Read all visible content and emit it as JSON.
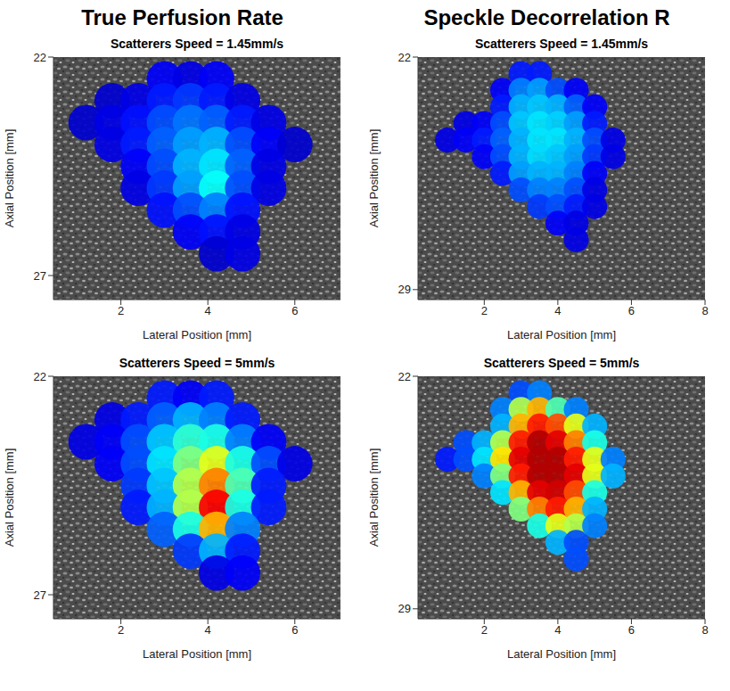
{
  "column_titles": [
    "True Perfusion Rate",
    "Speckle Decorrelation R"
  ],
  "chart_data": [
    {
      "type": "heatmap",
      "title": "Scatterers Speed = 1.45mm/s",
      "x_label": "Lateral Position [mm]",
      "y_label": "Axial Position [mm]",
      "xlim": [
        0.45,
        7.05
      ],
      "ylim": [
        27.55,
        22
      ],
      "xticks": [
        2,
        4,
        6
      ],
      "yticks": [
        22,
        27
      ],
      "zlim": [
        0,
        1
      ],
      "cells": [
        [
          3.0,
          22.5,
          0.12
        ],
        [
          3.6,
          22.5,
          0.1
        ],
        [
          4.2,
          22.5,
          0.12
        ],
        [
          1.8,
          23.0,
          0.08
        ],
        [
          2.4,
          23.0,
          0.1
        ],
        [
          3.0,
          23.0,
          0.15
        ],
        [
          3.6,
          23.0,
          0.18
        ],
        [
          4.2,
          23.0,
          0.15
        ],
        [
          4.8,
          23.0,
          0.1
        ],
        [
          1.2,
          23.5,
          0.08
        ],
        [
          1.8,
          23.5,
          0.1
        ],
        [
          2.4,
          23.5,
          0.14
        ],
        [
          3.0,
          23.5,
          0.2
        ],
        [
          3.6,
          23.5,
          0.24
        ],
        [
          4.2,
          23.5,
          0.22
        ],
        [
          4.8,
          23.5,
          0.15
        ],
        [
          5.4,
          23.5,
          0.1
        ],
        [
          1.8,
          24.0,
          0.1
        ],
        [
          2.4,
          24.0,
          0.15
        ],
        [
          3.0,
          24.0,
          0.22
        ],
        [
          3.6,
          24.0,
          0.28
        ],
        [
          4.2,
          24.0,
          0.3
        ],
        [
          4.8,
          24.0,
          0.2
        ],
        [
          5.4,
          24.0,
          0.12
        ],
        [
          6.0,
          24.0,
          0.08
        ],
        [
          2.4,
          24.5,
          0.12
        ],
        [
          3.0,
          24.5,
          0.2
        ],
        [
          3.6,
          24.5,
          0.3
        ],
        [
          4.2,
          24.5,
          0.35
        ],
        [
          4.8,
          24.5,
          0.22
        ],
        [
          5.4,
          24.5,
          0.1
        ],
        [
          2.4,
          25.0,
          0.1
        ],
        [
          3.0,
          25.0,
          0.18
        ],
        [
          3.6,
          25.0,
          0.28
        ],
        [
          4.2,
          25.0,
          0.38
        ],
        [
          4.8,
          25.0,
          0.2
        ],
        [
          5.4,
          25.0,
          0.1
        ],
        [
          3.0,
          25.5,
          0.14
        ],
        [
          3.6,
          25.5,
          0.2
        ],
        [
          4.2,
          25.5,
          0.25
        ],
        [
          4.8,
          25.5,
          0.14
        ],
        [
          3.6,
          26.0,
          0.12
        ],
        [
          4.2,
          26.0,
          0.14
        ],
        [
          4.8,
          26.0,
          0.1
        ],
        [
          4.2,
          26.5,
          0.08
        ],
        [
          4.8,
          26.5,
          0.1
        ]
      ]
    },
    {
      "type": "heatmap",
      "title": "Scatterers Speed = 1.45mm/s",
      "x_label": "Lateral Position [mm]",
      "y_label": "Axial Position [mm]",
      "xlim": [
        0.2,
        8.0
      ],
      "ylim": [
        29.3,
        22
      ],
      "xticks": [
        2,
        4,
        6,
        8
      ],
      "yticks": [
        22,
        29
      ],
      "zlim": [
        0,
        1
      ],
      "cells": [
        [
          3.0,
          22.5,
          0.15
        ],
        [
          3.5,
          22.5,
          0.15
        ],
        [
          2.5,
          23.0,
          0.12
        ],
        [
          3.0,
          23.0,
          0.25
        ],
        [
          3.5,
          23.0,
          0.28
        ],
        [
          4.0,
          23.0,
          0.2
        ],
        [
          4.5,
          23.0,
          0.12
        ],
        [
          2.5,
          23.5,
          0.15
        ],
        [
          3.0,
          23.5,
          0.3
        ],
        [
          3.5,
          23.5,
          0.32
        ],
        [
          4.0,
          23.5,
          0.3
        ],
        [
          4.5,
          23.5,
          0.22
        ],
        [
          5.0,
          23.5,
          0.12
        ],
        [
          1.5,
          24.0,
          0.1
        ],
        [
          2.0,
          24.0,
          0.12
        ],
        [
          2.5,
          24.0,
          0.2
        ],
        [
          3.0,
          24.0,
          0.32
        ],
        [
          3.5,
          24.0,
          0.35
        ],
        [
          4.0,
          24.0,
          0.33
        ],
        [
          4.5,
          24.0,
          0.28
        ],
        [
          5.0,
          24.0,
          0.15
        ],
        [
          1.0,
          24.5,
          0.1
        ],
        [
          1.5,
          24.5,
          0.12
        ],
        [
          2.0,
          24.5,
          0.15
        ],
        [
          2.5,
          24.5,
          0.22
        ],
        [
          3.0,
          24.5,
          0.3
        ],
        [
          3.5,
          24.5,
          0.35
        ],
        [
          4.0,
          24.5,
          0.35
        ],
        [
          4.5,
          24.5,
          0.3
        ],
        [
          5.0,
          24.5,
          0.2
        ],
        [
          5.5,
          24.5,
          0.1
        ],
        [
          2.0,
          25.0,
          0.12
        ],
        [
          2.5,
          25.0,
          0.2
        ],
        [
          3.0,
          25.0,
          0.3
        ],
        [
          3.5,
          25.0,
          0.34
        ],
        [
          4.0,
          25.0,
          0.32
        ],
        [
          4.5,
          25.0,
          0.28
        ],
        [
          5.0,
          25.0,
          0.18
        ],
        [
          5.5,
          25.0,
          0.1
        ],
        [
          2.5,
          25.5,
          0.15
        ],
        [
          3.0,
          25.5,
          0.28
        ],
        [
          3.5,
          25.5,
          0.3
        ],
        [
          4.0,
          25.5,
          0.3
        ],
        [
          4.5,
          25.5,
          0.25
        ],
        [
          5.0,
          25.5,
          0.12
        ],
        [
          3.0,
          26.0,
          0.2
        ],
        [
          3.5,
          26.0,
          0.25
        ],
        [
          4.0,
          26.0,
          0.25
        ],
        [
          4.5,
          26.0,
          0.2
        ],
        [
          5.0,
          26.0,
          0.1
        ],
        [
          3.5,
          26.5,
          0.18
        ],
        [
          4.0,
          26.5,
          0.2
        ],
        [
          4.5,
          26.5,
          0.15
        ],
        [
          5.0,
          26.5,
          0.1
        ],
        [
          4.0,
          27.0,
          0.12
        ],
        [
          4.5,
          27.0,
          0.1
        ],
        [
          4.5,
          27.5,
          0.1
        ]
      ]
    },
    {
      "type": "heatmap",
      "title": "Scatterers Speed = 5mm/s",
      "x_label": "Lateral Position [mm]",
      "y_label": "Axial Position [mm]",
      "xlim": [
        0.45,
        7.05
      ],
      "ylim": [
        27.55,
        22
      ],
      "xticks": [
        2,
        4,
        6
      ],
      "yticks": [
        22,
        27
      ],
      "zlim": [
        0,
        1
      ],
      "cells": [
        [
          3.0,
          22.5,
          0.15
        ],
        [
          3.6,
          22.5,
          0.12
        ],
        [
          4.2,
          22.5,
          0.15
        ],
        [
          1.8,
          23.0,
          0.1
        ],
        [
          2.4,
          23.0,
          0.15
        ],
        [
          3.0,
          23.0,
          0.22
        ],
        [
          3.6,
          23.0,
          0.3
        ],
        [
          4.2,
          23.0,
          0.25
        ],
        [
          4.8,
          23.0,
          0.15
        ],
        [
          1.2,
          23.5,
          0.1
        ],
        [
          1.8,
          23.5,
          0.12
        ],
        [
          2.4,
          23.5,
          0.2
        ],
        [
          3.0,
          23.5,
          0.32
        ],
        [
          3.6,
          23.5,
          0.42
        ],
        [
          4.2,
          23.5,
          0.4
        ],
        [
          4.8,
          23.5,
          0.25
        ],
        [
          5.4,
          23.5,
          0.12
        ],
        [
          1.8,
          24.0,
          0.12
        ],
        [
          2.4,
          24.0,
          0.2
        ],
        [
          3.0,
          24.0,
          0.35
        ],
        [
          3.6,
          24.0,
          0.5
        ],
        [
          4.2,
          24.0,
          0.6
        ],
        [
          4.8,
          24.0,
          0.4
        ],
        [
          5.4,
          24.0,
          0.2
        ],
        [
          6.0,
          24.0,
          0.1
        ],
        [
          2.4,
          24.5,
          0.18
        ],
        [
          3.0,
          24.5,
          0.32
        ],
        [
          3.6,
          24.5,
          0.55
        ],
        [
          4.2,
          24.5,
          0.75
        ],
        [
          4.8,
          24.5,
          0.45
        ],
        [
          5.4,
          24.5,
          0.15
        ],
        [
          2.4,
          25.0,
          0.15
        ],
        [
          3.0,
          25.0,
          0.3
        ],
        [
          3.6,
          25.0,
          0.55
        ],
        [
          4.2,
          25.0,
          0.88
        ],
        [
          4.8,
          25.0,
          0.4
        ],
        [
          5.4,
          25.0,
          0.15
        ],
        [
          3.0,
          25.5,
          0.22
        ],
        [
          3.6,
          25.5,
          0.4
        ],
        [
          4.2,
          25.5,
          0.7
        ],
        [
          4.8,
          25.5,
          0.25
        ],
        [
          3.6,
          26.0,
          0.18
        ],
        [
          4.2,
          26.0,
          0.3
        ],
        [
          4.8,
          26.0,
          0.15
        ],
        [
          4.2,
          26.5,
          0.1
        ],
        [
          4.8,
          26.5,
          0.12
        ]
      ]
    },
    {
      "type": "heatmap",
      "title": "Scatterers Speed = 5mm/s",
      "x_label": "Lateral Position [mm]",
      "y_label": "Axial Position [mm]",
      "xlim": [
        0.2,
        8.0
      ],
      "ylim": [
        29.3,
        22
      ],
      "xticks": [
        2,
        4,
        6,
        8
      ],
      "yticks": [
        22,
        29
      ],
      "zlim": [
        0,
        1
      ],
      "cells": [
        [
          3.0,
          22.5,
          0.2
        ],
        [
          3.5,
          22.5,
          0.25
        ],
        [
          2.5,
          23.0,
          0.25
        ],
        [
          3.0,
          23.0,
          0.55
        ],
        [
          3.5,
          23.0,
          0.7
        ],
        [
          4.0,
          23.0,
          0.45
        ],
        [
          4.5,
          23.0,
          0.25
        ],
        [
          2.5,
          23.5,
          0.3
        ],
        [
          3.0,
          23.5,
          0.7
        ],
        [
          3.5,
          23.5,
          0.85
        ],
        [
          4.0,
          23.5,
          0.8
        ],
        [
          4.5,
          23.5,
          0.6
        ],
        [
          5.0,
          23.5,
          0.3
        ],
        [
          1.5,
          24.0,
          0.2
        ],
        [
          2.0,
          24.0,
          0.3
        ],
        [
          2.5,
          24.0,
          0.55
        ],
        [
          3.0,
          24.0,
          0.85
        ],
        [
          3.5,
          24.0,
          0.95
        ],
        [
          4.0,
          24.0,
          0.9
        ],
        [
          4.5,
          24.0,
          0.75
        ],
        [
          5.0,
          24.0,
          0.4
        ],
        [
          1.0,
          24.5,
          0.15
        ],
        [
          1.5,
          24.5,
          0.2
        ],
        [
          2.0,
          24.5,
          0.35
        ],
        [
          2.5,
          24.5,
          0.65
        ],
        [
          3.0,
          24.5,
          0.9
        ],
        [
          3.5,
          24.5,
          0.95
        ],
        [
          4.0,
          24.5,
          0.95
        ],
        [
          4.5,
          24.5,
          0.85
        ],
        [
          5.0,
          24.5,
          0.6
        ],
        [
          5.5,
          24.5,
          0.25
        ],
        [
          2.0,
          25.0,
          0.25
        ],
        [
          2.5,
          25.0,
          0.5
        ],
        [
          3.0,
          25.0,
          0.85
        ],
        [
          3.5,
          25.0,
          0.95
        ],
        [
          4.0,
          25.0,
          0.95
        ],
        [
          4.5,
          25.0,
          0.9
        ],
        [
          5.0,
          25.0,
          0.6
        ],
        [
          5.5,
          25.0,
          0.3
        ],
        [
          2.5,
          25.5,
          0.35
        ],
        [
          3.0,
          25.5,
          0.7
        ],
        [
          3.5,
          25.5,
          0.9
        ],
        [
          4.0,
          25.5,
          0.92
        ],
        [
          4.5,
          25.5,
          0.8
        ],
        [
          5.0,
          25.5,
          0.4
        ],
        [
          3.0,
          26.0,
          0.5
        ],
        [
          3.5,
          26.0,
          0.75
        ],
        [
          4.0,
          26.0,
          0.85
        ],
        [
          4.5,
          26.0,
          0.7
        ],
        [
          5.0,
          26.0,
          0.3
        ],
        [
          3.5,
          26.5,
          0.4
        ],
        [
          4.0,
          26.5,
          0.6
        ],
        [
          4.5,
          26.5,
          0.55
        ],
        [
          5.0,
          26.5,
          0.25
        ],
        [
          4.0,
          27.0,
          0.3
        ],
        [
          4.5,
          27.0,
          0.2
        ],
        [
          4.5,
          27.5,
          0.2
        ]
      ]
    }
  ]
}
